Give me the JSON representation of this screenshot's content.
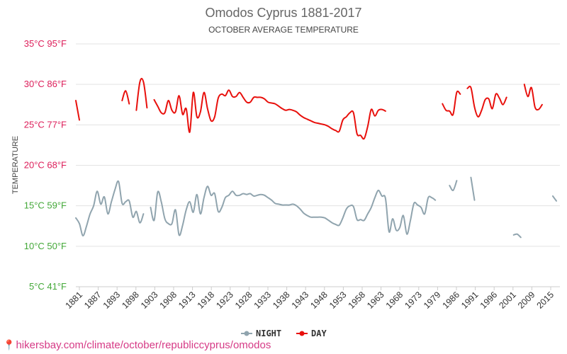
{
  "chart_data": {
    "type": "line",
    "title": "Omodos Cyprus 1881-2017",
    "subtitle": "OCTOBER AVERAGE TEMPERATURE",
    "ylabel": "TEMPERATURE",
    "ylim": [
      5,
      35
    ],
    "xlim": [
      1881,
      2017
    ],
    "grid": true,
    "legend_position": "bottom",
    "y_ticks": [
      {
        "value": 35,
        "label": "35°C 95°F",
        "color": "#dd1e5a"
      },
      {
        "value": 30,
        "label": "30°C 86°F",
        "color": "#dd1e5a"
      },
      {
        "value": 25,
        "label": "25°C 77°F",
        "color": "#dd1e5a"
      },
      {
        "value": 20,
        "label": "20°C 68°F",
        "color": "#dd1e5a"
      },
      {
        "value": 15,
        "label": "15°C 59°F",
        "color": "#43a838"
      },
      {
        "value": 10,
        "label": "10°C 50°F",
        "color": "#43a838"
      },
      {
        "value": 5,
        "label": "5°C 41°F",
        "color": "#43a838"
      }
    ],
    "x_ticks": [
      "1881",
      "1887",
      "1893",
      "1898",
      "1903",
      "1908",
      "1913",
      "1918",
      "1923",
      "1928",
      "1933",
      "1938",
      "1943",
      "1948",
      "1953",
      "1958",
      "1963",
      "1968",
      "1973",
      "1979",
      "1986",
      "1991",
      "1996",
      "2001",
      "2009",
      "2015"
    ],
    "series": [
      {
        "name": "NIGHT",
        "color": "#90a4ae",
        "segments": [
          [
            [
              1881,
              13.5
            ],
            [
              1882,
              12.8
            ],
            [
              1883,
              11.3
            ],
            [
              1884,
              12.5
            ],
            [
              1885,
              14.0
            ],
            [
              1886,
              15.0
            ],
            [
              1887,
              16.8
            ],
            [
              1888,
              15.2
            ],
            [
              1889,
              16.1
            ],
            [
              1890,
              14.0
            ],
            [
              1891,
              15.5
            ],
            [
              1892,
              17.0
            ],
            [
              1893,
              18.0
            ],
            [
              1894,
              15.3
            ],
            [
              1895,
              15.5
            ],
            [
              1896,
              15.6
            ],
            [
              1897,
              13.6
            ],
            [
              1898,
              14.3
            ],
            [
              1899,
              12.9
            ],
            [
              1900,
              14.0
            ]
          ],
          [
            [
              1902,
              14.8
            ],
            [
              1903,
              13.2
            ],
            [
              1904,
              16.7
            ],
            [
              1905,
              15.5
            ],
            [
              1906,
              13.4
            ],
            [
              1907,
              12.8
            ],
            [
              1908,
              12.8
            ],
            [
              1909,
              14.5
            ],
            [
              1910,
              11.4
            ],
            [
              1911,
              12.6
            ],
            [
              1912,
              14.5
            ],
            [
              1913,
              15.5
            ],
            [
              1914,
              14.2
            ],
            [
              1915,
              16.4
            ],
            [
              1916,
              14.0
            ],
            [
              1917,
              16.0
            ],
            [
              1918,
              17.4
            ],
            [
              1919,
              16.3
            ],
            [
              1920,
              16.5
            ],
            [
              1921,
              14.3
            ],
            [
              1922,
              14.8
            ],
            [
              1923,
              16.0
            ],
            [
              1924,
              16.3
            ],
            [
              1925,
              16.8
            ],
            [
              1926,
              16.3
            ],
            [
              1927,
              16.3
            ],
            [
              1928,
              16.5
            ],
            [
              1929,
              16.4
            ],
            [
              1930,
              16.5
            ],
            [
              1931,
              16.2
            ],
            [
              1932,
              16.3
            ],
            [
              1933,
              16.4
            ],
            [
              1934,
              16.3
            ],
            [
              1935,
              16.0
            ],
            [
              1936,
              15.7
            ],
            [
              1937,
              15.3
            ],
            [
              1938,
              15.2
            ],
            [
              1939,
              15.1
            ],
            [
              1940,
              15.1
            ],
            [
              1941,
              15.1
            ],
            [
              1942,
              15.2
            ],
            [
              1943,
              15.0
            ],
            [
              1944,
              14.6
            ],
            [
              1945,
              14.1
            ],
            [
              1946,
              13.8
            ],
            [
              1947,
              13.6
            ],
            [
              1948,
              13.6
            ],
            [
              1949,
              13.6
            ],
            [
              1950,
              13.6
            ],
            [
              1951,
              13.5
            ],
            [
              1952,
              13.2
            ],
            [
              1953,
              12.9
            ],
            [
              1954,
              12.7
            ],
            [
              1955,
              12.6
            ],
            [
              1956,
              13.5
            ],
            [
              1957,
              14.6
            ],
            [
              1958,
              15.0
            ],
            [
              1959,
              14.9
            ],
            [
              1960,
              13.3
            ],
            [
              1961,
              13.3
            ],
            [
              1962,
              13.2
            ],
            [
              1963,
              14.0
            ],
            [
              1964,
              14.8
            ],
            [
              1965,
              16.0
            ],
            [
              1966,
              16.9
            ],
            [
              1967,
              16.2
            ],
            [
              1968,
              15.9
            ],
            [
              1969,
              11.8
            ],
            [
              1970,
              13.4
            ],
            [
              1971,
              12.0
            ],
            [
              1972,
              12.3
            ],
            [
              1973,
              13.8
            ],
            [
              1974,
              11.5
            ],
            [
              1975,
              13.2
            ],
            [
              1976,
              15.3
            ],
            [
              1977,
              15.1
            ],
            [
              1978,
              14.8
            ],
            [
              1979,
              14.0
            ],
            [
              1980,
              16.0
            ],
            [
              1981,
              16.0
            ],
            [
              1982,
              15.7
            ]
          ],
          [
            [
              1986,
              17.5
            ],
            [
              1987,
              16.9
            ],
            [
              1988,
              18.1
            ]
          ],
          [
            [
              1992,
              18.5
            ],
            [
              1993,
              15.7
            ]
          ],
          [
            [
              2004,
              11.4
            ],
            [
              2005,
              11.5
            ],
            [
              2006,
              11.1
            ]
          ],
          [
            [
              2015,
              16.2
            ],
            [
              2016,
              15.6
            ]
          ]
        ]
      },
      {
        "name": "DAY",
        "color": "#e8100c",
        "segments": [
          [
            [
              1881,
              28.0
            ],
            [
              1882,
              25.6
            ]
          ],
          [
            [
              1894,
              28.0
            ],
            [
              1895,
              29.2
            ],
            [
              1896,
              27.6
            ]
          ],
          [
            [
              1898,
              26.8
            ],
            [
              1899,
              30.3
            ],
            [
              1900,
              30.3
            ],
            [
              1901,
              27.1
            ]
          ],
          [
            [
              1903,
              28.1
            ],
            [
              1904,
              27.3
            ],
            [
              1905,
              26.5
            ],
            [
              1906,
              26.5
            ],
            [
              1907,
              28.0
            ],
            [
              1908,
              26.8
            ],
            [
              1909,
              26.6
            ],
            [
              1910,
              28.6
            ],
            [
              1911,
              26.3
            ],
            [
              1912,
              27.0
            ],
            [
              1913,
              24.1
            ],
            [
              1914,
              29.0
            ],
            [
              1915,
              26.0
            ],
            [
              1916,
              26.6
            ],
            [
              1917,
              29.0
            ],
            [
              1918,
              27.0
            ],
            [
              1919,
              25.5
            ],
            [
              1920,
              26.0
            ],
            [
              1921,
              28.3
            ],
            [
              1922,
              28.8
            ],
            [
              1923,
              28.6
            ],
            [
              1924,
              29.3
            ],
            [
              1925,
              28.5
            ],
            [
              1926,
              28.5
            ],
            [
              1927,
              29.0
            ],
            [
              1928,
              28.4
            ],
            [
              1929,
              27.8
            ],
            [
              1930,
              27.8
            ],
            [
              1931,
              28.4
            ],
            [
              1932,
              28.4
            ],
            [
              1933,
              28.4
            ],
            [
              1934,
              28.2
            ],
            [
              1935,
              27.8
            ],
            [
              1936,
              27.7
            ],
            [
              1937,
              27.6
            ],
            [
              1938,
              27.3
            ],
            [
              1939,
              27.0
            ],
            [
              1940,
              26.8
            ],
            [
              1941,
              26.9
            ],
            [
              1942,
              26.8
            ],
            [
              1943,
              26.6
            ],
            [
              1944,
              26.2
            ],
            [
              1945,
              25.9
            ],
            [
              1946,
              25.7
            ],
            [
              1947,
              25.5
            ],
            [
              1948,
              25.3
            ],
            [
              1949,
              25.2
            ],
            [
              1950,
              25.1
            ],
            [
              1951,
              25.0
            ],
            [
              1952,
              24.8
            ],
            [
              1953,
              24.5
            ],
            [
              1954,
              24.3
            ],
            [
              1955,
              24.2
            ],
            [
              1956,
              25.6
            ],
            [
              1957,
              26.0
            ],
            [
              1958,
              26.5
            ],
            [
              1959,
              26.5
            ],
            [
              1960,
              23.9
            ],
            [
              1961,
              23.7
            ],
            [
              1962,
              23.3
            ],
            [
              1963,
              24.8
            ],
            [
              1964,
              26.9
            ],
            [
              1965,
              26.1
            ],
            [
              1966,
              26.8
            ],
            [
              1967,
              26.9
            ],
            [
              1968,
              26.7
            ]
          ],
          [
            [
              1984,
              27.6
            ],
            [
              1985,
              26.8
            ],
            [
              1986,
              26.7
            ],
            [
              1987,
              26.3
            ],
            [
              1988,
              29.0
            ],
            [
              1989,
              28.8
            ]
          ],
          [
            [
              1991,
              29.5
            ],
            [
              1992,
              29.6
            ],
            [
              1993,
              27.2
            ],
            [
              1994,
              26.0
            ],
            [
              1995,
              26.8
            ],
            [
              1996,
              28.1
            ],
            [
              1997,
              28.2
            ],
            [
              1998,
              27.0
            ],
            [
              1999,
              28.8
            ],
            [
              2000,
              28.3
            ],
            [
              2001,
              27.5
            ],
            [
              2002,
              28.4
            ]
          ],
          [
            [
              2007,
              30.0
            ],
            [
              2008,
              28.5
            ],
            [
              2009,
              29.6
            ],
            [
              2010,
              27.2
            ],
            [
              2011,
              26.9
            ],
            [
              2012,
              27.5
            ]
          ]
        ]
      }
    ]
  },
  "footer": {
    "pin_icon": "location-pin-icon",
    "url": "hikersbay.com/climate/october/republiccyprus/omodos"
  }
}
